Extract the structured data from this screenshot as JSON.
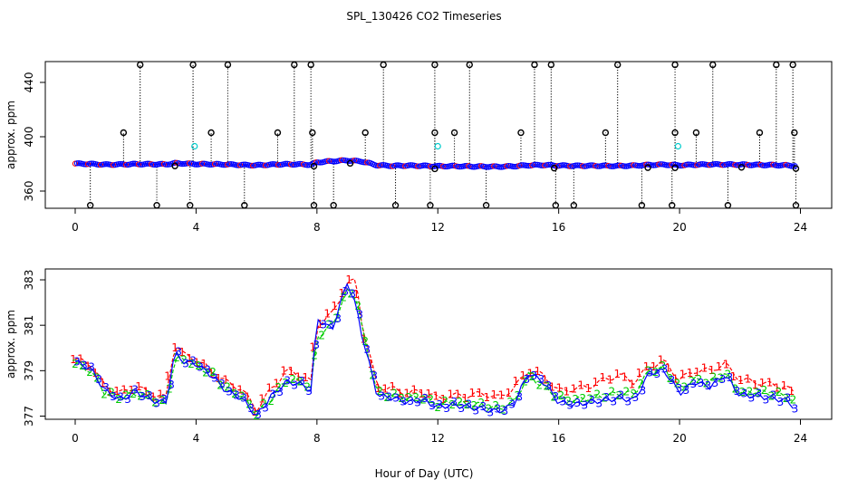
{
  "figure": {
    "title": "SPL_130426  CO2 Timeseries",
    "xlabel": "Hour of Day (UTC)"
  },
  "colors": {
    "series1": "#ff0000",
    "series2": "#00cc00",
    "series3": "#0000ff",
    "outlier": "#000000",
    "highlight": "#00cccc"
  },
  "chart_data": [
    {
      "type": "scatter",
      "panel": "top",
      "ylabel": "approx. ppm",
      "xlim": [
        0,
        24
      ],
      "ylim": [
        348,
        456
      ],
      "xticks": [
        0,
        4,
        8,
        12,
        16,
        20,
        24
      ],
      "yticks": [
        360,
        400,
        440
      ],
      "baseline": [
        [
          0,
          380.2
        ],
        [
          0.5,
          380.0
        ],
        [
          1,
          379.5
        ],
        [
          1.5,
          379.6
        ],
        [
          2,
          379.9
        ],
        [
          2.5,
          379.8
        ],
        [
          3,
          379.7
        ],
        [
          3.3,
          380.5
        ],
        [
          3.6,
          380.3
        ],
        [
          4,
          379.9
        ],
        [
          4.5,
          379.8
        ],
        [
          5,
          379.6
        ],
        [
          5.5,
          379.3
        ],
        [
          6,
          379.0
        ],
        [
          6.5,
          379.5
        ],
        [
          7,
          379.8
        ],
        [
          7.5,
          379.7
        ],
        [
          7.8,
          379.4
        ],
        [
          8,
          381.2
        ],
        [
          8.5,
          382.0
        ],
        [
          9,
          382.6
        ],
        [
          9.5,
          381.8
        ],
        [
          10,
          379.0
        ],
        [
          10.5,
          378.6
        ],
        [
          11,
          378.8
        ],
        [
          11.5,
          378.6
        ],
        [
          12,
          378.3
        ],
        [
          12.5,
          378.4
        ],
        [
          13,
          378.2
        ],
        [
          13.5,
          378.1
        ],
        [
          14,
          378.0
        ],
        [
          14.5,
          378.3
        ],
        [
          15,
          379.0
        ],
        [
          15.5,
          379.2
        ],
        [
          16,
          378.8
        ],
        [
          16.5,
          378.6
        ],
        [
          17,
          378.7
        ],
        [
          17.5,
          378.6
        ],
        [
          18,
          378.5
        ],
        [
          18.5,
          378.8
        ],
        [
          19,
          379.3
        ],
        [
          19.5,
          379.5
        ],
        [
          20,
          379.0
        ],
        [
          20.5,
          379.4
        ],
        [
          21,
          379.6
        ],
        [
          21.5,
          379.6
        ],
        [
          22,
          379.5
        ],
        [
          22.5,
          379.3
        ],
        [
          23,
          379.2
        ],
        [
          23.5,
          379.0
        ],
        [
          23.8,
          378.6
        ]
      ],
      "outliers_high": [
        2.15,
        3.9,
        5.05,
        7.25,
        7.8,
        10.2,
        11.9,
        13.05,
        15.2,
        15.75,
        17.95,
        19.85,
        21.1,
        23.2,
        23.75
      ],
      "outliers_mid": [
        1.6,
        4.5,
        6.7,
        7.85,
        9.6,
        11.9,
        12.55,
        14.75,
        17.55,
        19.85,
        20.55,
        22.65,
        23.8
      ],
      "outliers_low": [
        0.5,
        2.7,
        3.8,
        5.6,
        7.9,
        8.55,
        10.6,
        11.75,
        13.6,
        15.9,
        16.5,
        18.75,
        19.75,
        21.6,
        23.85
      ],
      "outliers_near": [
        3.3,
        7.9,
        9.1,
        11.9,
        15.85,
        18.95,
        19.85,
        22.05,
        23.85
      ],
      "highlight_points": [
        [
          3.95,
          393
        ],
        [
          12.0,
          393
        ],
        [
          19.95,
          393
        ]
      ]
    },
    {
      "type": "line",
      "panel": "bottom",
      "ylabel": "approx. ppm",
      "xlim": [
        0,
        24
      ],
      "ylim": [
        376.9,
        383.2
      ],
      "xticks": [
        0,
        4,
        8,
        12,
        16,
        20,
        24
      ],
      "yticks": [
        377,
        379,
        381,
        383
      ],
      "series": [
        {
          "name": "1",
          "values": [
            [
              0,
              379.5
            ],
            [
              0.5,
              379.3
            ],
            [
              1,
              378.3
            ],
            [
              1.5,
              378.0
            ],
            [
              2,
              378.3
            ],
            [
              2.5,
              378.0
            ],
            [
              3,
              377.8
            ],
            [
              3.3,
              380.2
            ],
            [
              3.6,
              379.7
            ],
            [
              4,
              379.5
            ],
            [
              4.5,
              379.0
            ],
            [
              5,
              378.5
            ],
            [
              5.5,
              378.2
            ],
            [
              6,
              377.3
            ],
            [
              6.5,
              378.2
            ],
            [
              7,
              379.0
            ],
            [
              7.5,
              378.8
            ],
            [
              7.8,
              378.5
            ],
            [
              8,
              381.0
            ],
            [
              8.5,
              381.5
            ],
            [
              9,
              382.8
            ],
            [
              9.3,
              383.0
            ],
            [
              9.5,
              381.0
            ],
            [
              10,
              378.3
            ],
            [
              10.5,
              378.2
            ],
            [
              11,
              378.0
            ],
            [
              11.5,
              378.1
            ],
            [
              12,
              377.8
            ],
            [
              12.5,
              377.9
            ],
            [
              13,
              377.9
            ],
            [
              13.5,
              378.0
            ],
            [
              14,
              377.8
            ],
            [
              14.5,
              378.2
            ],
            [
              15,
              379.0
            ],
            [
              15.5,
              378.8
            ],
            [
              16,
              378.1
            ],
            [
              16.5,
              378.2
            ],
            [
              17,
              378.3
            ],
            [
              17.5,
              378.6
            ],
            [
              18,
              378.8
            ],
            [
              18.5,
              378.5
            ],
            [
              19,
              379.2
            ],
            [
              19.5,
              379.4
            ],
            [
              20,
              378.6
            ],
            [
              20.5,
              379.0
            ],
            [
              21,
              379.0
            ],
            [
              21.5,
              379.3
            ],
            [
              22,
              378.6
            ],
            [
              22.5,
              378.5
            ],
            [
              23,
              378.4
            ],
            [
              23.5,
              378.3
            ],
            [
              23.8,
              378.0
            ]
          ]
        },
        {
          "name": "2",
          "values": [
            [
              0,
              379.3
            ],
            [
              0.5,
              379.0
            ],
            [
              1,
              378.0
            ],
            [
              1.5,
              377.8
            ],
            [
              2,
              378.0
            ],
            [
              2.5,
              377.8
            ],
            [
              3,
              377.5
            ],
            [
              3.3,
              379.5
            ],
            [
              3.6,
              379.5
            ],
            [
              4,
              379.2
            ],
            [
              4.5,
              378.9
            ],
            [
              5,
              378.2
            ],
            [
              5.5,
              377.9
            ],
            [
              6,
              377.1
            ],
            [
              6.5,
              377.8
            ],
            [
              7,
              378.6
            ],
            [
              7.5,
              378.5
            ],
            [
              7.8,
              378.2
            ],
            [
              8,
              380.5
            ],
            [
              8.5,
              381.0
            ],
            [
              9,
              382.5
            ],
            [
              9.3,
              382.3
            ],
            [
              9.5,
              380.8
            ],
            [
              10,
              378.0
            ],
            [
              10.5,
              377.9
            ],
            [
              11,
              377.8
            ],
            [
              11.5,
              377.8
            ],
            [
              12,
              377.5
            ],
            [
              12.5,
              377.6
            ],
            [
              13,
              377.5
            ],
            [
              13.5,
              377.5
            ],
            [
              14,
              377.3
            ],
            [
              14.5,
              377.6
            ],
            [
              15,
              378.8
            ],
            [
              15.5,
              378.3
            ],
            [
              16,
              377.8
            ],
            [
              16.5,
              377.7
            ],
            [
              17,
              377.8
            ],
            [
              17.5,
              377.9
            ],
            [
              18,
              378.0
            ],
            [
              18.5,
              378.0
            ],
            [
              19,
              379.0
            ],
            [
              19.5,
              379.1
            ],
            [
              20,
              378.2
            ],
            [
              20.5,
              378.6
            ],
            [
              21,
              378.5
            ],
            [
              21.5,
              378.9
            ],
            [
              22,
              378.0
            ],
            [
              22.5,
              378.1
            ],
            [
              23,
              378.0
            ],
            [
              23.5,
              377.9
            ],
            [
              23.8,
              377.6
            ]
          ]
        },
        {
          "name": "3",
          "values": [
            [
              0,
              379.4
            ],
            [
              0.5,
              379.1
            ],
            [
              1,
              378.1
            ],
            [
              1.5,
              377.7
            ],
            [
              2,
              378.1
            ],
            [
              2.5,
              377.7
            ],
            [
              3,
              377.6
            ],
            [
              3.3,
              379.8
            ],
            [
              3.6,
              379.4
            ],
            [
              4,
              379.3
            ],
            [
              4.5,
              378.8
            ],
            [
              5,
              378.1
            ],
            [
              5.5,
              377.8
            ],
            [
              6,
              377.0
            ],
            [
              6.5,
              377.9
            ],
            [
              7,
              378.5
            ],
            [
              7.5,
              378.4
            ],
            [
              7.8,
              378.1
            ],
            [
              8,
              381.3
            ],
            [
              8.5,
              380.8
            ],
            [
              9,
              382.9
            ],
            [
              9.3,
              381.8
            ],
            [
              9.5,
              380.5
            ],
            [
              10,
              377.9
            ],
            [
              10.5,
              377.8
            ],
            [
              11,
              377.6
            ],
            [
              11.5,
              377.7
            ],
            [
              12,
              377.4
            ],
            [
              12.5,
              377.5
            ],
            [
              13,
              377.4
            ],
            [
              13.5,
              377.3
            ],
            [
              14,
              377.2
            ],
            [
              14.5,
              377.5
            ],
            [
              15,
              378.9
            ],
            [
              15.5,
              378.5
            ],
            [
              16,
              377.6
            ],
            [
              16.5,
              377.5
            ],
            [
              17,
              377.6
            ],
            [
              17.5,
              377.7
            ],
            [
              18,
              377.8
            ],
            [
              18.5,
              377.7
            ],
            [
              19,
              378.9
            ],
            [
              19.5,
              379.0
            ],
            [
              20,
              378.0
            ],
            [
              20.5,
              378.5
            ],
            [
              21,
              378.3
            ],
            [
              21.5,
              378.8
            ],
            [
              22,
              377.9
            ],
            [
              22.5,
              377.9
            ],
            [
              23,
              377.8
            ],
            [
              23.5,
              377.7
            ],
            [
              23.8,
              377.4
            ]
          ]
        }
      ]
    }
  ]
}
